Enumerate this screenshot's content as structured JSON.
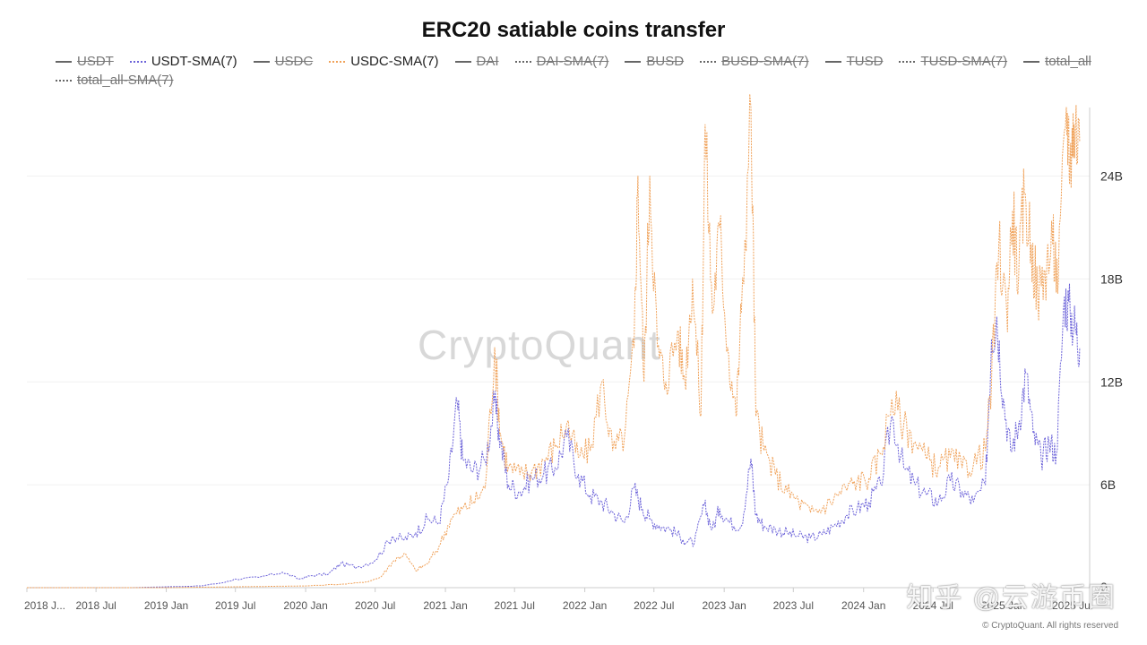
{
  "chart_data": {
    "type": "line",
    "title": "ERC20 satiable coins transfer",
    "xlabel": "",
    "ylabel": "",
    "x_ticks": [
      "2018 J...",
      "2018 Jul",
      "2019 Jan",
      "2019 Jul",
      "2020 Jan",
      "2020 Jul",
      "2021 Jan",
      "2021 Jul",
      "2022 Jan",
      "2022 Jul",
      "2023 Jan",
      "2023 Jul",
      "2024 Jan",
      "2024 Jul",
      "2025 Jan",
      "2025 Jul"
    ],
    "y_ticks": [
      "0",
      "6B",
      "12B",
      "18B",
      "24B"
    ],
    "ylim": [
      0,
      28
    ],
    "y_unit": "B",
    "grid": true,
    "legend_position": "top",
    "legend": [
      {
        "name": "USDT",
        "visible": false,
        "style": "solid"
      },
      {
        "name": "USDT-SMA(7)",
        "visible": true,
        "style": "dotted"
      },
      {
        "name": "USDC",
        "visible": false,
        "style": "solid"
      },
      {
        "name": "USDC-SMA(7)",
        "visible": true,
        "style": "dotted"
      },
      {
        "name": "DAI",
        "visible": false,
        "style": "solid"
      },
      {
        "name": "DAI-SMA(7)",
        "visible": false,
        "style": "dotted"
      },
      {
        "name": "BUSD",
        "visible": false,
        "style": "solid"
      },
      {
        "name": "BUSD-SMA(7)",
        "visible": false,
        "style": "dotted"
      },
      {
        "name": "TUSD",
        "visible": false,
        "style": "solid"
      },
      {
        "name": "TUSD-SMA(7)",
        "visible": false,
        "style": "dotted"
      },
      {
        "name": "total_all",
        "visible": false,
        "style": "solid"
      },
      {
        "name": "total_all-SMA(7)",
        "visible": false,
        "style": "dotted"
      }
    ],
    "series": [
      {
        "name": "USDT-SMA(7)",
        "color": "#6c63d9",
        "points": [
          [
            "2018-01-01",
            0.0
          ],
          [
            "2018-04-01",
            0.0
          ],
          [
            "2018-07-01",
            0.0
          ],
          [
            "2018-10-01",
            0.0
          ],
          [
            "2019-01-01",
            0.05
          ],
          [
            "2019-04-01",
            0.1
          ],
          [
            "2019-06-01",
            0.3
          ],
          [
            "2019-07-01",
            0.5
          ],
          [
            "2019-09-01",
            0.6
          ],
          [
            "2019-11-01",
            0.9
          ],
          [
            "2019-12-15",
            0.5
          ],
          [
            "2020-01-15",
            0.7
          ],
          [
            "2020-03-01",
            0.8
          ],
          [
            "2020-04-01",
            1.4
          ],
          [
            "2020-05-15",
            1.2
          ],
          [
            "2020-07-01",
            1.6
          ],
          [
            "2020-08-15",
            3.0
          ],
          [
            "2020-09-15",
            2.8
          ],
          [
            "2020-10-15",
            3.2
          ],
          [
            "2020-11-15",
            4.0
          ],
          [
            "2020-12-15",
            3.8
          ],
          [
            "2021-01-10",
            6.5
          ],
          [
            "2021-02-01",
            10.8
          ],
          [
            "2021-02-15",
            7.5
          ],
          [
            "2021-03-15",
            6.8
          ],
          [
            "2021-04-15",
            7.4
          ],
          [
            "2021-05-10",
            10.8
          ],
          [
            "2021-05-25",
            8.5
          ],
          [
            "2021-06-15",
            6.0
          ],
          [
            "2021-07-15",
            5.6
          ],
          [
            "2021-08-15",
            6.4
          ],
          [
            "2021-09-15",
            6.6
          ],
          [
            "2021-10-15",
            7.0
          ],
          [
            "2021-11-15",
            8.8
          ],
          [
            "2021-12-15",
            6.6
          ],
          [
            "2022-01-15",
            5.4
          ],
          [
            "2022-02-15",
            5.0
          ],
          [
            "2022-03-15",
            4.4
          ],
          [
            "2022-04-15",
            3.8
          ],
          [
            "2022-05-10",
            5.8
          ],
          [
            "2022-06-01",
            4.6
          ],
          [
            "2022-06-20",
            4.0
          ],
          [
            "2022-07-15",
            3.6
          ],
          [
            "2022-08-15",
            3.4
          ],
          [
            "2022-09-15",
            2.8
          ],
          [
            "2022-10-15",
            2.6
          ],
          [
            "2022-11-10",
            4.8
          ],
          [
            "2022-12-01",
            3.4
          ],
          [
            "2022-12-20",
            4.6
          ],
          [
            "2023-01-15",
            3.8
          ],
          [
            "2023-02-15",
            3.6
          ],
          [
            "2023-03-12",
            7.5
          ],
          [
            "2023-03-25",
            4.2
          ],
          [
            "2023-04-15",
            3.6
          ],
          [
            "2023-05-15",
            3.4
          ],
          [
            "2023-06-15",
            3.2
          ],
          [
            "2023-07-15",
            3.0
          ],
          [
            "2023-08-15",
            2.9
          ],
          [
            "2023-09-15",
            3.1
          ],
          [
            "2023-10-15",
            3.6
          ],
          [
            "2023-11-15",
            4.2
          ],
          [
            "2023-12-15",
            4.6
          ],
          [
            "2024-01-15",
            5.0
          ],
          [
            "2024-02-15",
            6.0
          ],
          [
            "2024-03-15",
            10.0
          ],
          [
            "2024-04-15",
            7.0
          ],
          [
            "2024-05-15",
            6.0
          ],
          [
            "2024-06-15",
            5.4
          ],
          [
            "2024-07-15",
            5.0
          ],
          [
            "2024-08-15",
            6.2
          ],
          [
            "2024-09-15",
            5.6
          ],
          [
            "2024-10-15",
            5.0
          ],
          [
            "2024-11-15",
            6.0
          ],
          [
            "2024-12-01",
            14.5
          ],
          [
            "2024-12-15",
            15.8
          ],
          [
            "2025-01-01",
            11.0
          ],
          [
            "2025-01-20",
            8.0
          ],
          [
            "2025-02-10",
            9.5
          ],
          [
            "2025-03-01",
            12.5
          ],
          [
            "2025-03-20",
            9.0
          ],
          [
            "2025-04-10",
            7.5
          ],
          [
            "2025-05-01",
            8.5
          ],
          [
            "2025-05-20",
            7.8
          ],
          [
            "2025-06-10",
            17.0
          ],
          [
            "2025-06-25",
            16.0
          ],
          [
            "2025-07-10",
            15.0
          ],
          [
            "2025-07-20",
            14.0
          ]
        ]
      },
      {
        "name": "USDC-SMA(7)",
        "color": "#f0a25a",
        "points": [
          [
            "2018-01-01",
            0.0
          ],
          [
            "2018-07-01",
            0.0
          ],
          [
            "2019-01-01",
            0.0
          ],
          [
            "2019-07-01",
            0.05
          ],
          [
            "2020-01-01",
            0.1
          ],
          [
            "2020-04-01",
            0.2
          ],
          [
            "2020-06-01",
            0.3
          ],
          [
            "2020-07-15",
            0.6
          ],
          [
            "2020-08-15",
            1.5
          ],
          [
            "2020-09-15",
            2.0
          ],
          [
            "2020-10-15",
            1.0
          ],
          [
            "2020-11-15",
            1.4
          ],
          [
            "2020-12-15",
            2.4
          ],
          [
            "2021-01-15",
            4.0
          ],
          [
            "2021-02-15",
            4.6
          ],
          [
            "2021-03-15",
            5.0
          ],
          [
            "2021-04-15",
            5.8
          ],
          [
            "2021-05-10",
            14.0
          ],
          [
            "2021-05-25",
            9.0
          ],
          [
            "2021-06-15",
            7.0
          ],
          [
            "2021-07-15",
            6.6
          ],
          [
            "2021-08-15",
            6.8
          ],
          [
            "2021-09-15",
            7.4
          ],
          [
            "2021-10-15",
            8.2
          ],
          [
            "2021-11-15",
            9.6
          ],
          [
            "2021-12-15",
            7.6
          ],
          [
            "2022-01-15",
            8.0
          ],
          [
            "2022-02-15",
            12.0
          ],
          [
            "2022-03-15",
            8.0
          ],
          [
            "2022-04-15",
            8.8
          ],
          [
            "2022-05-10",
            14.0
          ],
          [
            "2022-05-20",
            24.0
          ],
          [
            "2022-06-05",
            12.0
          ],
          [
            "2022-06-20",
            24.0
          ],
          [
            "2022-07-10",
            14.0
          ],
          [
            "2022-08-01",
            12.0
          ],
          [
            "2022-09-01",
            15.0
          ],
          [
            "2022-09-20",
            12.0
          ],
          [
            "2022-10-10",
            18.0
          ],
          [
            "2022-11-01",
            10.0
          ],
          [
            "2022-11-12",
            27.0
          ],
          [
            "2022-12-01",
            16.0
          ],
          [
            "2022-12-20",
            21.0
          ],
          [
            "2023-01-10",
            14.0
          ],
          [
            "2023-02-01",
            10.0
          ],
          [
            "2023-02-15",
            16.0
          ],
          [
            "2023-03-12",
            28.0
          ],
          [
            "2023-03-25",
            10.0
          ],
          [
            "2023-04-15",
            8.0
          ],
          [
            "2023-05-15",
            6.6
          ],
          [
            "2023-06-15",
            5.6
          ],
          [
            "2023-07-15",
            5.0
          ],
          [
            "2023-08-15",
            4.4
          ],
          [
            "2023-09-15",
            4.6
          ],
          [
            "2023-10-15",
            5.2
          ],
          [
            "2023-11-15",
            5.8
          ],
          [
            "2023-12-15",
            6.2
          ],
          [
            "2024-01-15",
            6.4
          ],
          [
            "2024-02-15",
            7.8
          ],
          [
            "2024-03-15",
            11.0
          ],
          [
            "2024-04-15",
            9.5
          ],
          [
            "2024-05-15",
            8.5
          ],
          [
            "2024-06-15",
            7.5
          ],
          [
            "2024-07-15",
            7.0
          ],
          [
            "2024-08-15",
            7.6
          ],
          [
            "2024-09-15",
            7.0
          ],
          [
            "2024-10-15",
            7.2
          ],
          [
            "2024-11-15",
            8.0
          ],
          [
            "2024-12-01",
            12.0
          ],
          [
            "2024-12-20",
            20.0
          ],
          [
            "2025-01-10",
            16.0
          ],
          [
            "2025-01-25",
            22.0
          ],
          [
            "2025-02-10",
            18.0
          ],
          [
            "2025-02-25",
            23.0
          ],
          [
            "2025-03-15",
            20.0
          ],
          [
            "2025-04-01",
            17.0
          ],
          [
            "2025-04-20",
            18.5
          ],
          [
            "2025-05-10",
            20.0
          ],
          [
            "2025-05-25",
            18.0
          ],
          [
            "2025-06-15",
            28.0
          ],
          [
            "2025-06-25",
            25.0
          ],
          [
            "2025-07-05",
            27.0
          ],
          [
            "2025-07-20",
            26.0
          ]
        ]
      }
    ],
    "x_range": [
      "2018-01-01",
      "2025-08-15"
    ],
    "watermark": "CryptoQuant",
    "copyright": "© CryptoQuant. All rights reserved",
    "footer_mark": "知乎 @云游币圈"
  }
}
